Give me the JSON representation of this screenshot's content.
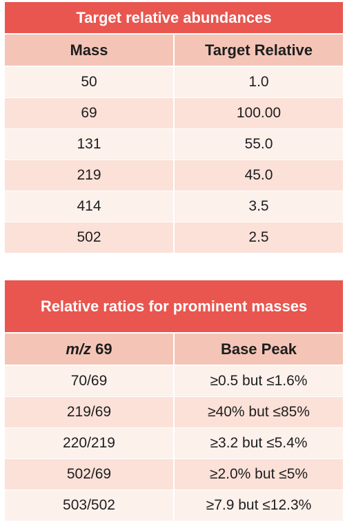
{
  "table1": {
    "title": "Target relative abundances",
    "headers": [
      "Mass",
      "Target Relative"
    ],
    "rows": [
      [
        "50",
        "1.0"
      ],
      [
        "69",
        "100.00"
      ],
      [
        "131",
        "55.0"
      ],
      [
        "219",
        "45.0"
      ],
      [
        "414",
        "3.5"
      ],
      [
        "502",
        "2.5"
      ]
    ]
  },
  "table2": {
    "title": "Relative ratios for prominent masses",
    "header_mz": "m/z",
    "header_mz_value": "69",
    "header_base": "Base Peak",
    "rows": [
      [
        "70/69",
        "≥0.5 but ≤1.6%"
      ],
      [
        "219/69",
        "≥40% but ≤85%"
      ],
      [
        "220/219",
        "≥3.2 but ≤5.4%"
      ],
      [
        "502/69",
        "≥2.0% but ≤5%"
      ],
      [
        "503/502",
        "≥7.9 but ≤12.3%"
      ]
    ]
  }
}
